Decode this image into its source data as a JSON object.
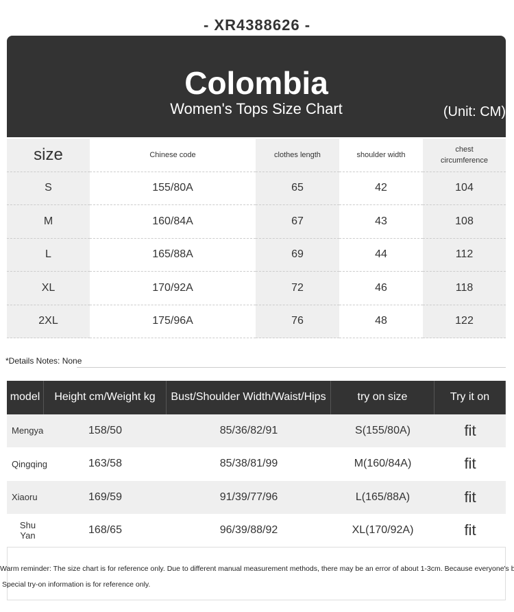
{
  "header": {
    "code": "- XR4388626 -",
    "brand": "Colombia",
    "subtitle": "Women's Tops Size Chart",
    "unit": "(Unit: CM)"
  },
  "size_table": {
    "columns": [
      "size",
      "Chinese code",
      "clothes length",
      "shoulder width",
      "chest circumference"
    ],
    "rows": [
      [
        "S",
        "155/80A",
        "65",
        "42",
        "104"
      ],
      [
        "M",
        "160/84A",
        "67",
        "43",
        "108"
      ],
      [
        "L",
        "165/88A",
        "69",
        "44",
        "112"
      ],
      [
        "XL",
        "170/92A",
        "72",
        "46",
        "118"
      ],
      [
        "2XL",
        "175/96A",
        "76",
        "48",
        "122"
      ]
    ]
  },
  "notes": "*Details Notes: None",
  "model_table": {
    "columns": [
      "model",
      "Height cm/Weight kg",
      "Bust/Shoulder Width/Waist/Hips",
      "try on size",
      "Try it on"
    ],
    "rows": [
      [
        "Mengyao",
        "158/50",
        "85/36/82/91",
        "S(155/80A)",
        "fit"
      ],
      [
        "Qingqing",
        "163/58",
        "85/38/81/99",
        "M(160/84A)",
        "fit"
      ],
      [
        "Xiaoru",
        "169/59",
        "91/39/77/96",
        "L(165/88A)",
        "fit"
      ],
      [
        "Shu Yan",
        "168/65",
        "96/39/88/92",
        "XL(170/92A)",
        "fit"
      ]
    ]
  },
  "reminder": [
    "Warm reminder: The size chart is for reference only. Due to different manual measurement methods, there may be an error of about 1-3cm. Because everyone's body shape is different",
    "Special try-on information is for reference only."
  ]
}
